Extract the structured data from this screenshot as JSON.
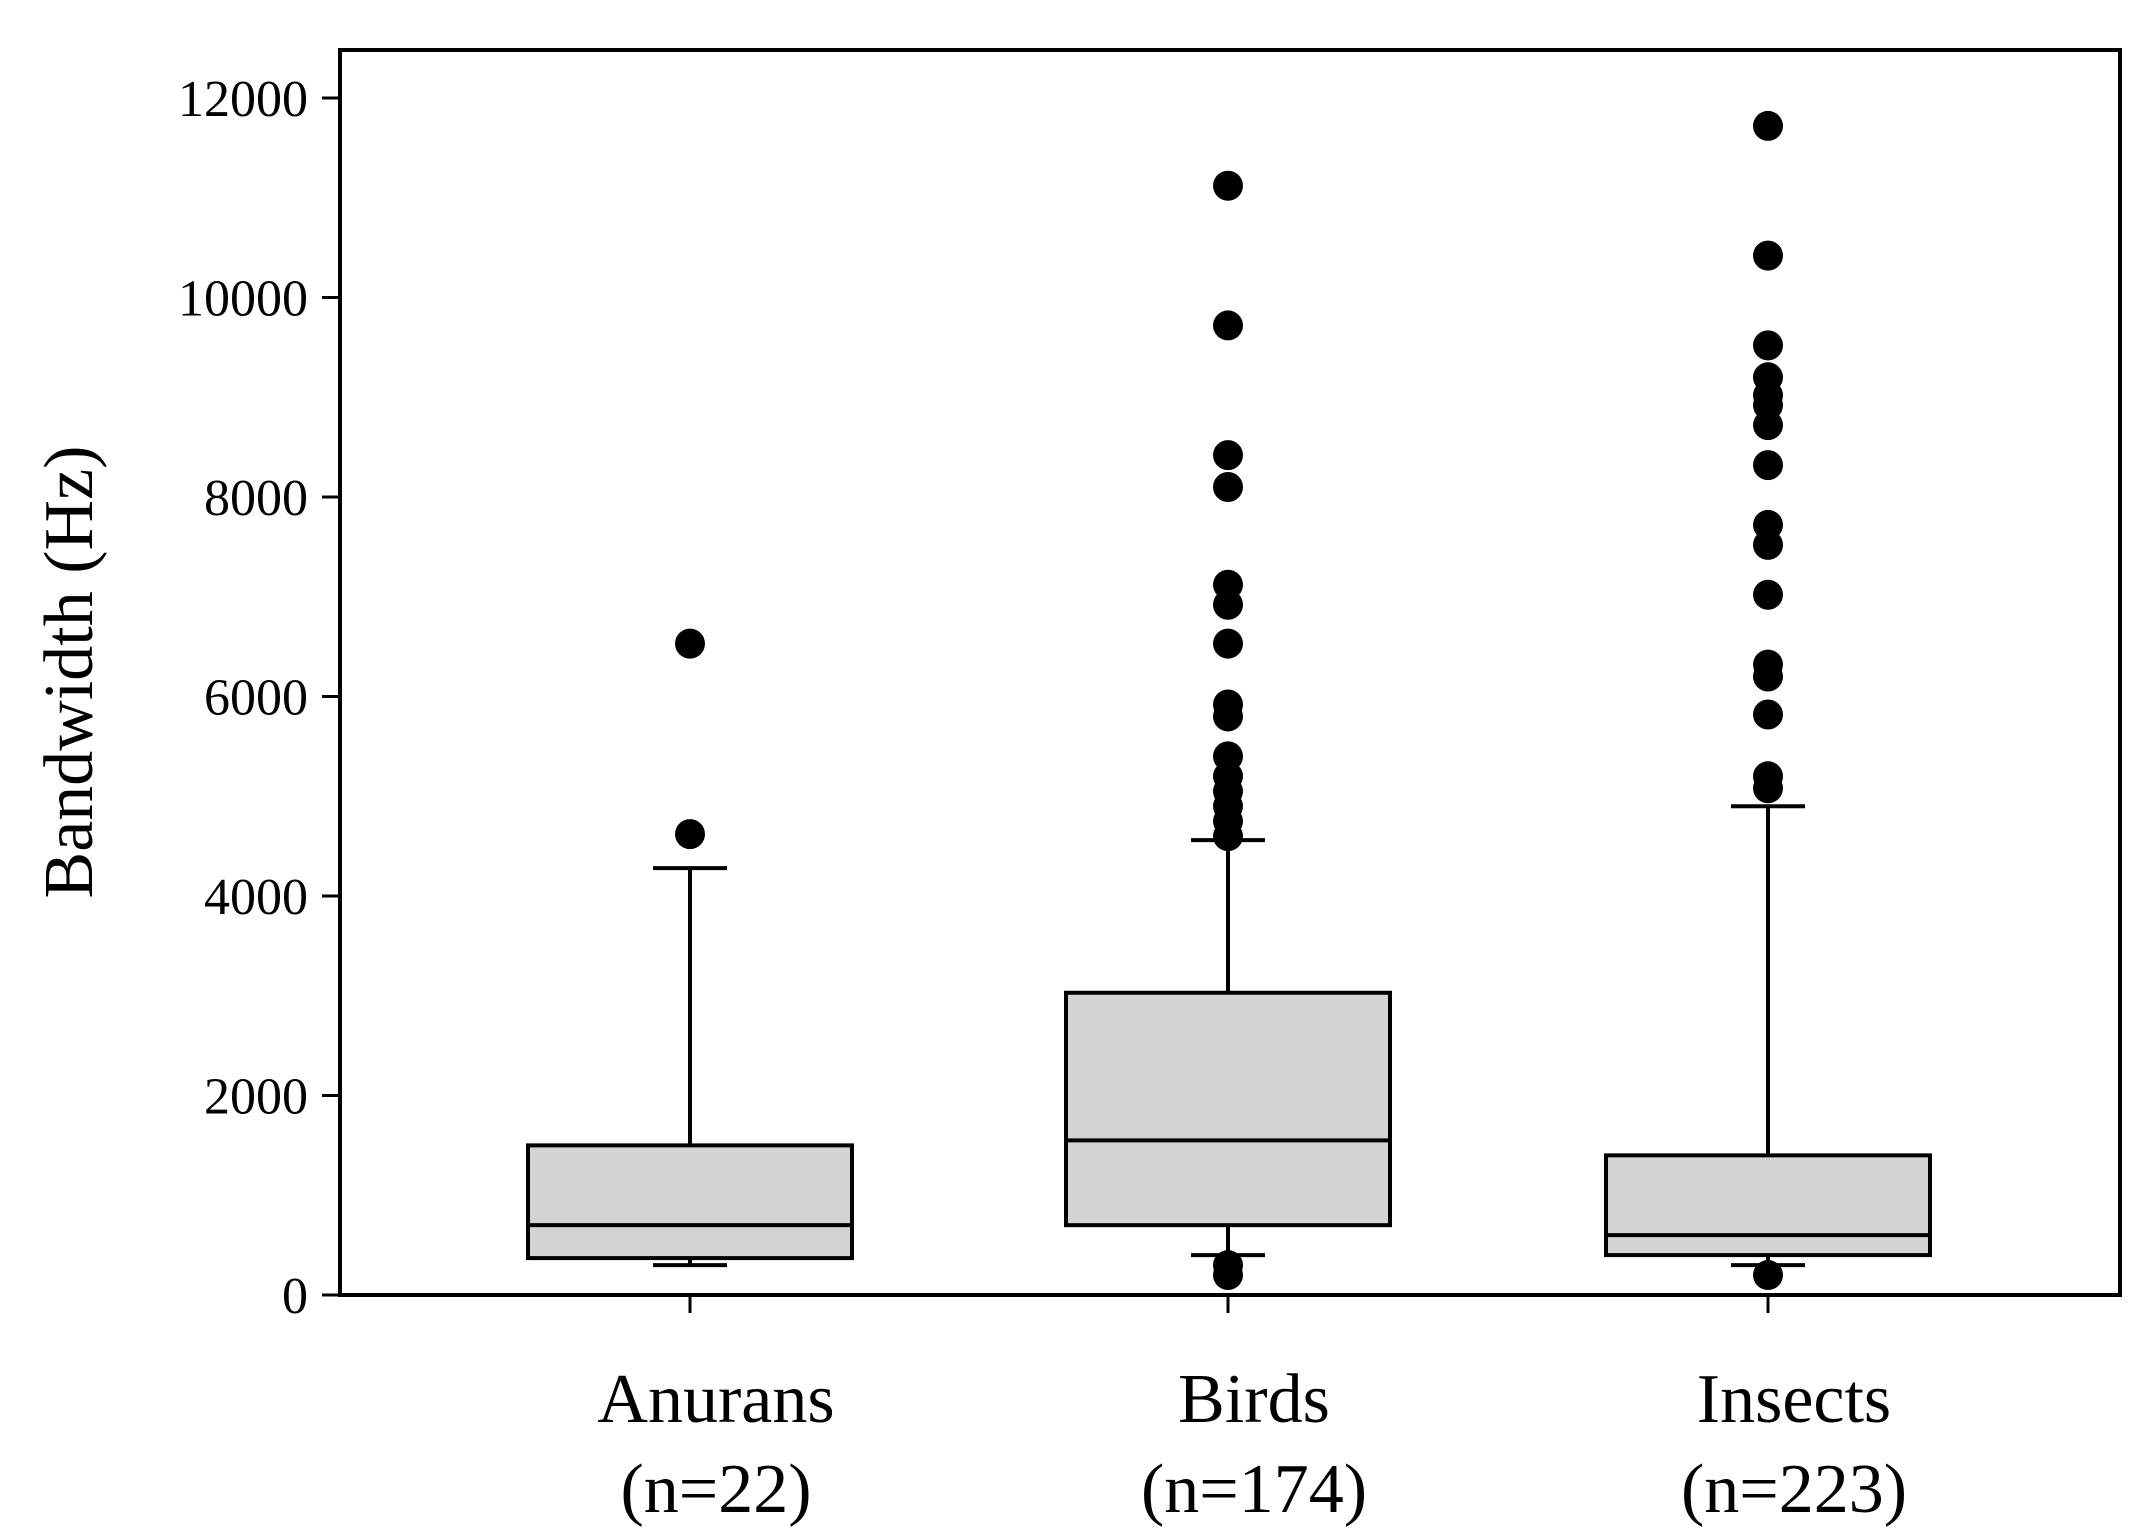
{
  "chart_data": {
    "type": "box",
    "title": "",
    "xlabel": "",
    "ylabel": "Bandwidth (Hz)",
    "ylim": [
      0,
      12500
    ],
    "yticks": [
      "0",
      "2000",
      "4000",
      "6000",
      "8000",
      "10000",
      "12000"
    ],
    "grid": false,
    "box_color": "#d3d3d3",
    "groups": [
      {
        "name": "Anurans",
        "n_label": "(n=22)",
        "whisker_low": 300,
        "q1": 370,
        "median": 700,
        "q3": 1500,
        "whisker_high": 4280,
        "outliers": [
          4620,
          6530
        ]
      },
      {
        "name": "Birds",
        "n_label": "(n=174)",
        "whisker_low": 400,
        "q1": 700,
        "median": 1550,
        "q3": 3030,
        "whisker_high": 4560,
        "outliers": [
          200,
          300,
          4600,
          4750,
          4900,
          5050,
          5200,
          5400,
          5800,
          5920,
          6530,
          6920,
          7120,
          8100,
          8420,
          9720,
          11120
        ]
      },
      {
        "name": "Insects",
        "n_label": "(n=223)",
        "whisker_low": 300,
        "q1": 400,
        "median": 600,
        "q3": 1400,
        "whisker_high": 4900,
        "outliers": [
          200,
          5080,
          5200,
          5820,
          6200,
          6320,
          7020,
          7520,
          7720,
          8320,
          8720,
          8920,
          9020,
          9200,
          9520,
          10420,
          11720
        ]
      }
    ]
  }
}
